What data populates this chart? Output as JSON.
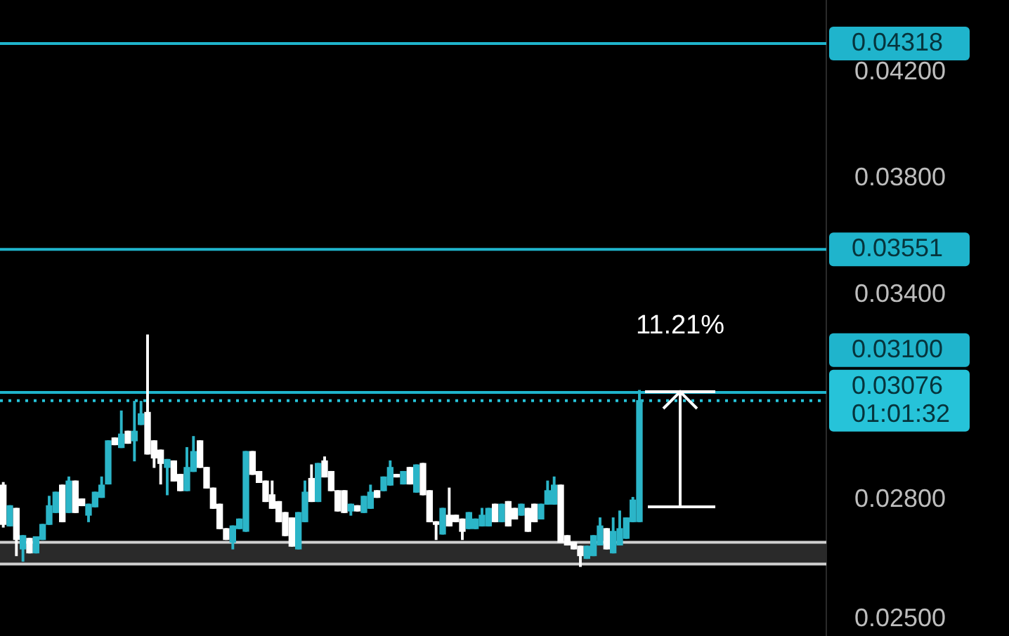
{
  "chart_data": {
    "type": "candlestick",
    "log": true,
    "tick_labels": "y",
    "categories": [
      null,
      null,
      null,
      null,
      null,
      null,
      null,
      null,
      null,
      null,
      null,
      null,
      null,
      null,
      null,
      null,
      null,
      null,
      null,
      null,
      null,
      null,
      null,
      null,
      null,
      null,
      null,
      null,
      null,
      null,
      null,
      null,
      null,
      null,
      null,
      null,
      null,
      null,
      null,
      null,
      null,
      null,
      null,
      null,
      null,
      null,
      null,
      null,
      null,
      null,
      null,
      null,
      null,
      null,
      null,
      null,
      null,
      null,
      null,
      null,
      null,
      null,
      null,
      null,
      null,
      null,
      null,
      null,
      null,
      null,
      null,
      null,
      null,
      null,
      null,
      null,
      null,
      null,
      null,
      null,
      null,
      null,
      null,
      null,
      null,
      null,
      null,
      null,
      null,
      null,
      null,
      null,
      null,
      null,
      null,
      null,
      null,
      null,
      null,
      null,
      null,
      null,
      null,
      null,
      null,
      null,
      null,
      null,
      null,
      null,
      null,
      null,
      null,
      null,
      null,
      null,
      null,
      null,
      null,
      null,
      null,
      null,
      null,
      null,
      null,
      null
    ],
    "ohlc": [
      [
        0.02839,
        0.02846,
        0.02728,
        0.02735
      ],
      [
        0.02731,
        0.02784,
        0.02731,
        0.02784
      ],
      [
        0.02777,
        0.02777,
        0.02655,
        0.02696
      ],
      [
        0.02672,
        0.02706,
        0.02641,
        0.02706
      ],
      [
        0.02699,
        0.02699,
        0.02662,
        0.02662
      ],
      [
        0.02662,
        0.02703,
        0.02662,
        0.02703
      ],
      [
        0.02696,
        0.02735,
        0.02696,
        0.02735
      ],
      [
        0.02735,
        0.02809,
        0.02735,
        0.02784
      ],
      [
        0.02766,
        0.0282,
        0.02766,
        0.0282
      ],
      [
        0.02839,
        0.02839,
        0.02742,
        0.02742
      ],
      [
        0.02766,
        0.02861,
        0.02766,
        0.0285
      ],
      [
        0.0285,
        0.0285,
        0.02766,
        0.02766
      ],
      [
        0.02802,
        0.02802,
        0.02784,
        0.02784
      ],
      [
        0.02759,
        0.02788,
        0.02742,
        0.02788
      ],
      [
        0.02781,
        0.0282,
        0.02781,
        0.0282
      ],
      [
        0.02806,
        0.02861,
        0.02806,
        0.02839
      ],
      [
        0.02842,
        0.02961,
        0.02842,
        0.02961
      ],
      [
        0.02969,
        0.02969,
        0.0295,
        0.0295
      ],
      [
        0.02942,
        0.03046,
        0.02942,
        0.0298
      ],
      [
        0.02988,
        0.02988,
        0.02954,
        0.02954
      ],
      [
        0.02961,
        0.03074,
        0.02905,
        0.02988
      ],
      [
        0.03007,
        0.03074,
        0.03007,
        0.03038
      ],
      [
        0.03042,
        0.03274,
        0.02924,
        0.02924
      ],
      [
        0.02961,
        0.02961,
        0.02887,
        0.02913
      ],
      [
        0.02935,
        0.02935,
        0.02842,
        0.02898
      ],
      [
        0.02887,
        0.02909,
        0.02813,
        0.02909
      ],
      [
        0.02905,
        0.02905,
        0.0285,
        0.0285
      ],
      [
        0.02868,
        0.02868,
        0.02824,
        0.02824
      ],
      [
        0.02824,
        0.02942,
        0.02824,
        0.02887
      ],
      [
        0.02876,
        0.02973,
        0.02876,
        0.02931
      ],
      [
        0.02961,
        0.02961,
        0.02887,
        0.02887
      ],
      [
        0.02887,
        0.02887,
        0.02831,
        0.02831
      ],
      [
        0.02831,
        0.02831,
        0.02777,
        0.02777
      ],
      [
        0.02788,
        0.02788,
        0.02724,
        0.02724
      ],
      [
        0.02724,
        0.02724,
        0.02696,
        0.02696
      ],
      [
        0.02689,
        0.02731,
        0.02672,
        0.02731
      ],
      [
        0.02724,
        0.02749,
        0.02724,
        0.02749
      ],
      [
        0.02717,
        0.02931,
        0.02717,
        0.02931
      ],
      [
        0.02931,
        0.02931,
        0.02868,
        0.02868
      ],
      [
        0.02876,
        0.02876,
        0.02846,
        0.02846
      ],
      [
        0.0285,
        0.0285,
        0.02795,
        0.02795
      ],
      [
        0.02813,
        0.0285,
        0.02777,
        0.02777
      ],
      [
        0.02795,
        0.02795,
        0.02742,
        0.02742
      ],
      [
        0.02766,
        0.02766,
        0.02706,
        0.02706
      ],
      [
        0.02752,
        0.02752,
        0.02679,
        0.02679
      ],
      [
        0.02672,
        0.02766,
        0.02672,
        0.02766
      ],
      [
        0.02742,
        0.0285,
        0.02742,
        0.0282
      ],
      [
        0.02857,
        0.02894,
        0.02795,
        0.02795
      ],
      [
        0.02795,
        0.02898,
        0.02795,
        0.02898
      ],
      [
        0.02905,
        0.02916,
        0.02861,
        0.02861
      ],
      [
        0.02876,
        0.02876,
        0.02824,
        0.02824
      ],
      [
        0.02824,
        0.02824,
        0.0277,
        0.0277
      ],
      [
        0.02824,
        0.02824,
        0.02766,
        0.02766
      ],
      [
        0.0277,
        0.02788,
        0.02759,
        0.02788
      ],
      [
        0.02784,
        0.02784,
        0.0277,
        0.0277
      ],
      [
        0.02766,
        0.02809,
        0.02766,
        0.02809
      ],
      [
        0.02777,
        0.02839,
        0.02777,
        0.0282
      ],
      [
        0.02824,
        0.02824,
        0.02806,
        0.02806
      ],
      [
        0.02824,
        0.02861,
        0.02824,
        0.02861
      ],
      [
        0.02839,
        0.02905,
        0.02839,
        0.02887
      ],
      [
        0.02868,
        0.02868,
        0.02861,
        0.02861
      ],
      [
        0.02842,
        0.02876,
        0.02842,
        0.02876
      ],
      [
        0.02887,
        0.02887,
        0.02842,
        0.02842
      ],
      [
        0.0282,
        0.02894,
        0.0282,
        0.02894
      ],
      [
        0.02898,
        0.02898,
        0.02813,
        0.02813
      ],
      [
        0.02824,
        0.02824,
        0.02742,
        0.02742
      ],
      [
        0.02742,
        0.02742,
        0.02696,
        0.02735
      ],
      [
        0.0271,
        0.02777,
        0.0271,
        0.02777
      ],
      [
        0.02759,
        0.02831,
        0.02731,
        0.02731
      ],
      [
        0.02759,
        0.02759,
        0.02742,
        0.02742
      ],
      [
        0.02749,
        0.02749,
        0.02696,
        0.02717
      ],
      [
        0.02724,
        0.02766,
        0.02724,
        0.02766
      ],
      [
        0.02724,
        0.02749,
        0.02724,
        0.02749
      ],
      [
        0.02731,
        0.02777,
        0.02731,
        0.02759
      ],
      [
        0.02731,
        0.02777,
        0.02731,
        0.02777
      ],
      [
        0.02788,
        0.02788,
        0.02742,
        0.02742
      ],
      [
        0.02742,
        0.02788,
        0.02742,
        0.02788
      ],
      [
        0.02795,
        0.02795,
        0.02731,
        0.02731
      ],
      [
        0.02777,
        0.02777,
        0.02749,
        0.02749
      ],
      [
        0.02759,
        0.02788,
        0.02759,
        0.02788
      ],
      [
        0.02777,
        0.02777,
        0.02717,
        0.02717
      ],
      [
        0.02788,
        0.02788,
        0.02742,
        0.02742
      ],
      [
        0.02749,
        0.02788,
        0.02749,
        0.02788
      ],
      [
        0.02788,
        0.0285,
        0.02788,
        0.02824
      ],
      [
        0.02788,
        0.02861,
        0.02788,
        0.02839
      ],
      [
        0.02839,
        0.02839,
        0.02689,
        0.02689
      ],
      [
        0.02706,
        0.02706,
        0.02682,
        0.02682
      ],
      [
        0.02689,
        0.02689,
        0.02672,
        0.02672
      ],
      [
        0.02679,
        0.02679,
        0.02628,
        0.02655
      ],
      [
        0.02648,
        0.02679,
        0.02648,
        0.02679
      ],
      [
        0.02655,
        0.02706,
        0.02655,
        0.02706
      ],
      [
        0.02682,
        0.02752,
        0.02682,
        0.02731
      ],
      [
        0.02724,
        0.02724,
        0.02672,
        0.02672
      ],
      [
        0.02662,
        0.02752,
        0.02662,
        0.02717
      ],
      [
        0.02682,
        0.0277,
        0.02682,
        0.02724
      ],
      [
        0.02699,
        0.02752,
        0.02699,
        0.02752
      ],
      [
        0.02742,
        0.02806,
        0.02742,
        0.02799
      ],
      [
        0.02742,
        0.03106,
        0.02742,
        0.03076
      ],
      null,
      null,
      null,
      null,
      null,
      null,
      null,
      null,
      null,
      null,
      null,
      null,
      null,
      null,
      null,
      null,
      null,
      null,
      null,
      null,
      null,
      null,
      null,
      null,
      null,
      null,
      null,
      null
    ],
    "colors": [
      "#ffffff",
      "#2bb5c8",
      "#ffffff",
      "#2bb5c8",
      "#ffffff",
      "#2bb5c8",
      "#2bb5c8",
      "#2bb5c8",
      "#2bb5c8",
      "#ffffff",
      "#2bb5c8",
      "#ffffff",
      "#ffffff",
      "#2bb5c8",
      "#2bb5c8",
      "#2bb5c8",
      "#2bb5c8",
      "#ffffff",
      "#2bb5c8",
      "#ffffff",
      "#2bb5c8",
      "#2bb5c8",
      "#ffffff",
      "#ffffff",
      "#ffffff",
      "#2bb5c8",
      "#ffffff",
      "#ffffff",
      "#2bb5c8",
      "#2bb5c8",
      "#ffffff",
      "#ffffff",
      "#ffffff",
      "#ffffff",
      "#ffffff",
      "#2bb5c8",
      "#2bb5c8",
      "#2bb5c8",
      "#ffffff",
      "#ffffff",
      "#ffffff",
      "#ffffff",
      "#ffffff",
      "#ffffff",
      "#ffffff",
      "#2bb5c8",
      "#2bb5c8",
      "#ffffff",
      "#2bb5c8",
      "#ffffff",
      "#ffffff",
      "#ffffff",
      "#ffffff",
      "#2bb5c8",
      "#ffffff",
      "#2bb5c8",
      "#2bb5c8",
      "#ffffff",
      "#2bb5c8",
      "#2bb5c8",
      "#ffffff",
      "#2bb5c8",
      "#ffffff",
      "#2bb5c8",
      "#ffffff",
      "#ffffff",
      "#ffffff",
      "#2bb5c8",
      "#ffffff",
      "#ffffff",
      "#ffffff",
      "#2bb5c8",
      "#2bb5c8",
      "#2bb5c8",
      "#2bb5c8",
      "#ffffff",
      "#2bb5c8",
      "#ffffff",
      "#ffffff",
      "#2bb5c8",
      "#ffffff",
      "#ffffff",
      "#2bb5c8",
      "#2bb5c8",
      "#2bb5c8",
      "#ffffff",
      "#ffffff",
      "#ffffff",
      "#ffffff",
      "#2bb5c8",
      "#2bb5c8",
      "#2bb5c8",
      "#ffffff",
      "#2bb5c8",
      "#2bb5c8",
      "#2bb5c8",
      "#2bb5c8",
      "#2bb5c8",
      null,
      null,
      null,
      null,
      null,
      null,
      null,
      null,
      null,
      null,
      null,
      null,
      null,
      null,
      null,
      null,
      null,
      null,
      null,
      null,
      null,
      null,
      null,
      null,
      null,
      null,
      null,
      null
    ],
    "ylim": [
      0.0246,
      0.045
    ],
    "yticks": [
      {
        "value": 0.025,
        "label": "0.02500"
      },
      {
        "value": 0.028,
        "label": "0.02800"
      },
      {
        "value": 0.034,
        "label": "0.03400"
      },
      {
        "value": 0.038,
        "label": "0.03800"
      },
      {
        "value": 0.042,
        "label": "0.04200"
      }
    ],
    "ref_lines": [
      {
        "axis": "y",
        "value": 0.04318,
        "label": "0.04318",
        "color": "#1fb4cc"
      },
      {
        "axis": "y",
        "value": 0.03551,
        "label": "0.03551",
        "color": "#1fb4cc"
      },
      {
        "axis": "y",
        "value": 0.031,
        "label": "0.03100",
        "color": "#1fb4cc"
      },
      {
        "axis": "y",
        "value": 0.03076,
        "label": "0.03076\n01:01:32",
        "color": "#26c3d9",
        "line_style": "dotted"
      },
      {
        "axis": "y",
        "value": 0.02689,
        "color": "#d0d0d0"
      },
      {
        "axis": "y",
        "value": 0.02634,
        "color": "#d0d0d0"
      }
    ],
    "bands": [
      {
        "axis": "y",
        "from": 0.02634,
        "to": 0.02689,
        "color": "#2a2a2a"
      }
    ],
    "annotations": [
      "11.21%"
    ]
  }
}
